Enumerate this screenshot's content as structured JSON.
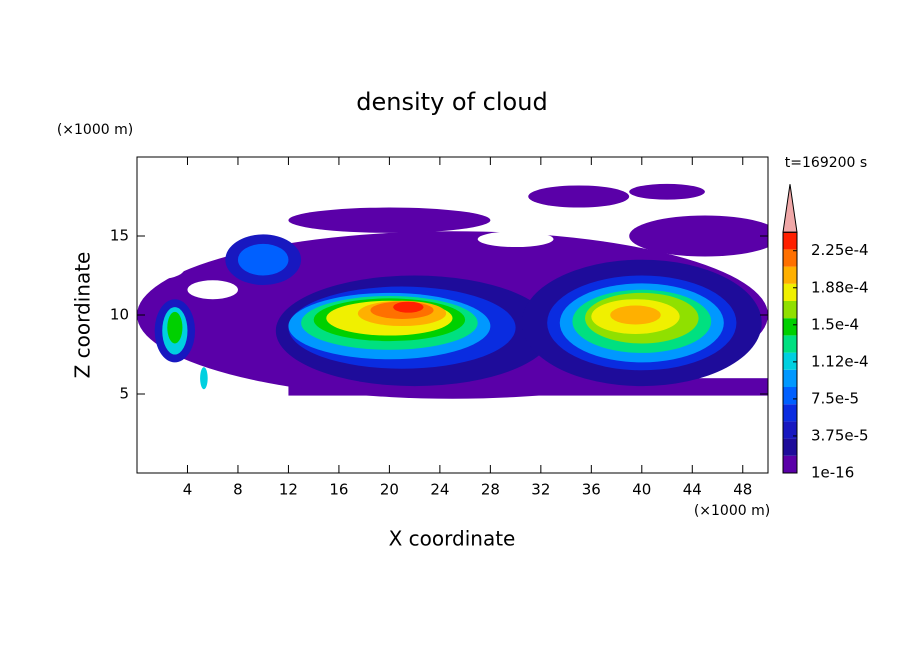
{
  "chart_data": {
    "type": "contour",
    "title": "density of cloud",
    "x_label": "X coordinate",
    "y_label": "Z coordinate",
    "x_unit": "(×1000 m)",
    "y_unit": "(×1000 m)",
    "time_label": "t=169200 s",
    "xlim": [
      0,
      50
    ],
    "xticks": [
      4,
      8,
      12,
      16,
      20,
      24,
      28,
      32,
      36,
      40,
      44,
      48
    ],
    "ylim": [
      0,
      20
    ],
    "yticks": [
      5,
      10,
      15
    ],
    "colorbar": {
      "lim": [
        1e-16,
        0.00024375
      ],
      "colors": [
        "#5a00a8",
        "#1e0c9a",
        "#1818c0",
        "#0a2ce0",
        "#0060ff",
        "#0098ff",
        "#00d0e0",
        "#00e080",
        "#00d000",
        "#90e000",
        "#f0f000",
        "#ffb000",
        "#ff7000",
        "#ff2000"
      ],
      "extend_color": "#f0a8a8",
      "ticks": [
        {
          "value": 1e-16,
          "label": "1e-16"
        },
        {
          "value": 3.75e-05,
          "label": "3.75e-5"
        },
        {
          "value": 7.5e-05,
          "label": "7.5e-5"
        },
        {
          "value": 0.0001125,
          "label": "1.12e-4"
        },
        {
          "value": 0.00015,
          "label": "1.5e-4"
        },
        {
          "value": 0.0001875,
          "label": "1.88e-4"
        },
        {
          "value": 0.000225,
          "label": "2.25e-4"
        }
      ]
    }
  }
}
